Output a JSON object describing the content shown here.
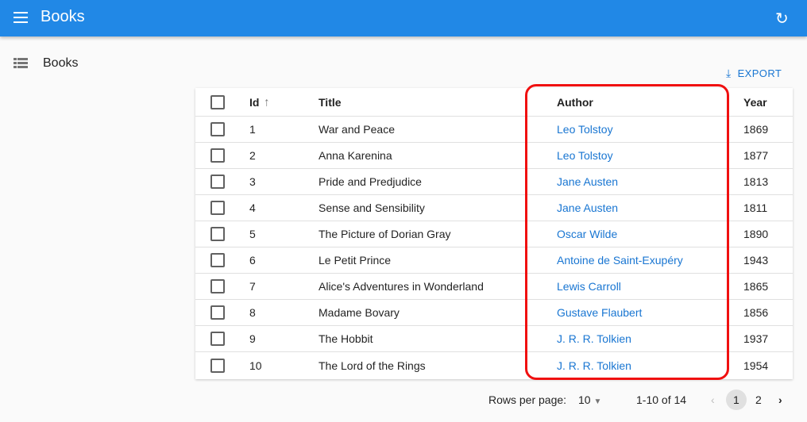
{
  "appbar": {
    "title": "Books",
    "menu_icon": "menu-icon",
    "refresh_icon": "refresh-icon"
  },
  "sidebar": {
    "items": [
      {
        "label": "Books",
        "icon": "list-icon"
      }
    ]
  },
  "toolbar": {
    "export_label": "EXPORT"
  },
  "table": {
    "columns": {
      "id": "Id",
      "title": "Title",
      "author": "Author",
      "year": "Year"
    },
    "sort": {
      "column": "Id",
      "direction": "asc"
    },
    "rows": [
      {
        "id": "1",
        "title": "War and Peace",
        "author": "Leo Tolstoy",
        "year": "1869"
      },
      {
        "id": "2",
        "title": "Anna Karenina",
        "author": "Leo Tolstoy",
        "year": "1877"
      },
      {
        "id": "3",
        "title": "Pride and Predjudice",
        "author": "Jane Austen",
        "year": "1813"
      },
      {
        "id": "4",
        "title": "Sense and Sensibility",
        "author": "Jane Austen",
        "year": "1811"
      },
      {
        "id": "5",
        "title": "The Picture of Dorian Gray",
        "author": "Oscar Wilde",
        "year": "1890"
      },
      {
        "id": "6",
        "title": "Le Petit Prince",
        "author": "Antoine de Saint-Exupéry",
        "year": "1943"
      },
      {
        "id": "7",
        "title": "Alice's Adventures in Wonderland",
        "author": "Lewis Carroll",
        "year": "1865"
      },
      {
        "id": "8",
        "title": "Madame Bovary",
        "author": "Gustave Flaubert",
        "year": "1856"
      },
      {
        "id": "9",
        "title": "The Hobbit",
        "author": "J. R. R. Tolkien",
        "year": "1937"
      },
      {
        "id": "10",
        "title": "The Lord of the Rings",
        "author": "J. R. R. Tolkien",
        "year": "1954"
      }
    ]
  },
  "pagination": {
    "rows_per_page_label": "Rows per page:",
    "rows_per_page": "10",
    "range": "1-10 of 14",
    "pages": [
      "1",
      "2"
    ],
    "current_page": "1"
  },
  "colors": {
    "appbar": "#2188e6",
    "link": "#1976d2",
    "highlight": "#f01010"
  }
}
